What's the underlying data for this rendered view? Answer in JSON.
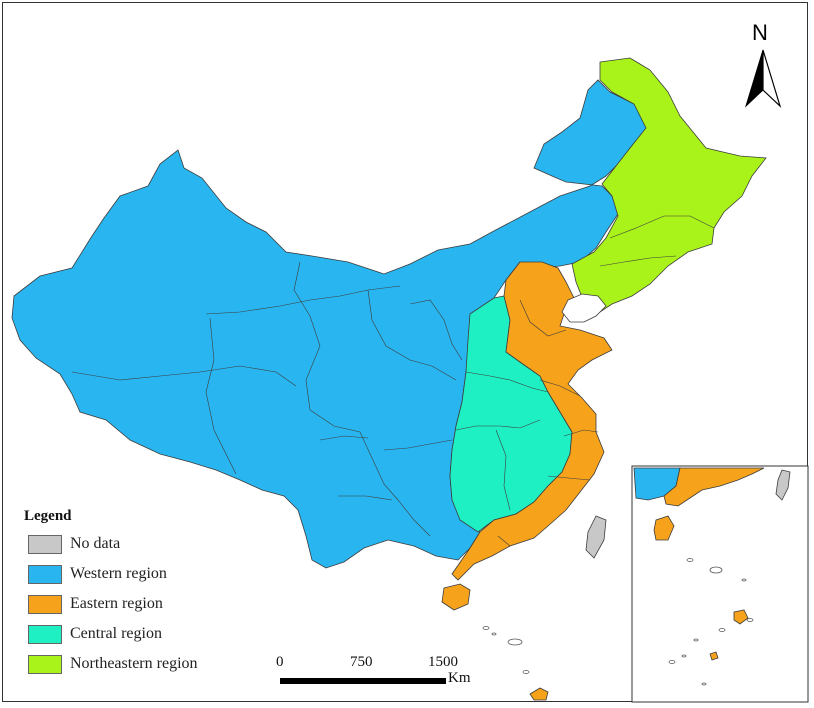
{
  "legend": {
    "title": "Legend",
    "items": [
      {
        "label": "No data",
        "color": "#c8c8c8"
      },
      {
        "label": "Western region",
        "color": "#29b6f0"
      },
      {
        "label": "Eastern region",
        "color": "#f7a21b"
      },
      {
        "label": "Central region",
        "color": "#1ff0c4"
      },
      {
        "label": "Northeastern region",
        "color": "#a9f21a"
      }
    ]
  },
  "scale_bar": {
    "ticks": [
      "0",
      "750",
      "1500"
    ],
    "unit": "Km"
  },
  "north_arrow": {
    "letter": "N"
  },
  "colors": {
    "western": "#29b6f0",
    "eastern": "#f7a21b",
    "central": "#1ff0c4",
    "northeastern": "#a9f21a",
    "no_data": "#c8c8c8",
    "border": "#3c3c3c"
  }
}
